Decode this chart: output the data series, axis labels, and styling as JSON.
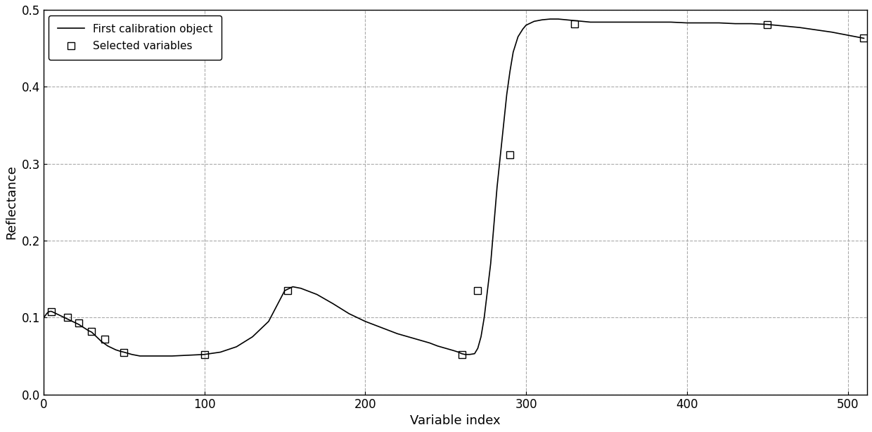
{
  "title": "",
  "xlabel": "Variable index",
  "ylabel": "Reflectance",
  "xlim": [
    0,
    512
  ],
  "ylim": [
    0,
    0.5
  ],
  "xticks": [
    0,
    100,
    200,
    300,
    400,
    500
  ],
  "yticks": [
    0,
    0.1,
    0.2,
    0.3,
    0.4,
    0.5
  ],
  "line_color": "#000000",
  "line_width": 1.2,
  "marker_color": "#000000",
  "marker_size": 7,
  "grid_color": "#aaaaaa",
  "grid_linestyle": "--",
  "background_color": "#ffffff",
  "legend_labels": [
    "First calibration object",
    "Selected variables"
  ],
  "selected_x": [
    5,
    15,
    22,
    30,
    38,
    50,
    100,
    152,
    260,
    270,
    290,
    330,
    450,
    510
  ],
  "selected_y": [
    0.108,
    0.1,
    0.093,
    0.082,
    0.072,
    0.055,
    0.052,
    0.135,
    0.052,
    0.135,
    0.312,
    0.482,
    0.481,
    0.463
  ],
  "curve_x": [
    0,
    1,
    2,
    3,
    4,
    5,
    6,
    7,
    8,
    9,
    10,
    12,
    14,
    16,
    18,
    20,
    22,
    25,
    28,
    30,
    33,
    36,
    38,
    40,
    42,
    45,
    48,
    50,
    55,
    60,
    65,
    70,
    80,
    90,
    100,
    110,
    120,
    130,
    140,
    150,
    155,
    160,
    170,
    180,
    190,
    200,
    210,
    215,
    220,
    225,
    230,
    235,
    240,
    245,
    250,
    255,
    258,
    260,
    262,
    265,
    268,
    270,
    272,
    274,
    276,
    278,
    280,
    282,
    284,
    286,
    288,
    290,
    292,
    295,
    298,
    300,
    305,
    310,
    315,
    320,
    325,
    330,
    335,
    340,
    345,
    350,
    360,
    370,
    380,
    390,
    400,
    410,
    420,
    430,
    440,
    450,
    460,
    470,
    480,
    490,
    500,
    505,
    510
  ],
  "curve_y": [
    0.1,
    0.102,
    0.105,
    0.107,
    0.108,
    0.108,
    0.107,
    0.106,
    0.105,
    0.104,
    0.103,
    0.101,
    0.099,
    0.097,
    0.095,
    0.093,
    0.091,
    0.087,
    0.083,
    0.081,
    0.075,
    0.069,
    0.066,
    0.063,
    0.061,
    0.058,
    0.056,
    0.055,
    0.052,
    0.05,
    0.05,
    0.05,
    0.05,
    0.051,
    0.052,
    0.055,
    0.062,
    0.075,
    0.095,
    0.135,
    0.14,
    0.138,
    0.13,
    0.118,
    0.105,
    0.095,
    0.087,
    0.083,
    0.079,
    0.076,
    0.073,
    0.07,
    0.067,
    0.063,
    0.06,
    0.057,
    0.055,
    0.053,
    0.052,
    0.052,
    0.053,
    0.06,
    0.075,
    0.1,
    0.135,
    0.17,
    0.22,
    0.27,
    0.31,
    0.35,
    0.39,
    0.42,
    0.445,
    0.465,
    0.475,
    0.48,
    0.485,
    0.487,
    0.488,
    0.488,
    0.487,
    0.486,
    0.485,
    0.484,
    0.484,
    0.484,
    0.484,
    0.484,
    0.484,
    0.484,
    0.483,
    0.483,
    0.483,
    0.482,
    0.482,
    0.481,
    0.479,
    0.477,
    0.474,
    0.471,
    0.467,
    0.465,
    0.463
  ]
}
